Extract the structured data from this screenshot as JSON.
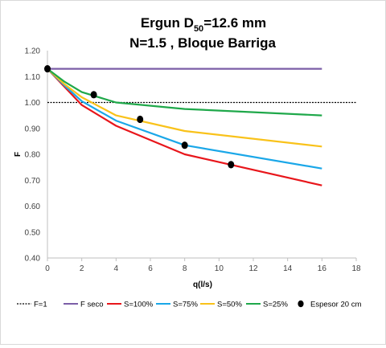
{
  "chart_data": {
    "type": "line",
    "title_main": "Ergun D",
    "title_sub": "50",
    "title_tail": "=12.6 mm",
    "title_line2": "N=1.5 , Bloque Barriga",
    "xlabel": "q(l/s)",
    "ylabel": "F",
    "xlim": [
      0,
      18
    ],
    "ylim": [
      0.4,
      1.2
    ],
    "x_ticks": [
      "0",
      "2",
      "4",
      "6",
      "8",
      "10",
      "12",
      "14",
      "16",
      "18"
    ],
    "y_ticks": [
      "0.40",
      "0.50",
      "0.60",
      "0.70",
      "0.80",
      "0.90",
      "1.00",
      "1.10",
      "1.20"
    ],
    "grid": false,
    "legend_position": "bottom",
    "series": [
      {
        "name": "F=1",
        "color": "#000000",
        "style": "dotted",
        "x": [
          0,
          18
        ],
        "y": [
          1.0,
          1.0
        ]
      },
      {
        "name": "F seco",
        "color": "#7b5ea7",
        "style": "solid",
        "x": [
          0,
          16
        ],
        "y": [
          1.13,
          1.13
        ]
      },
      {
        "name": "S=100%",
        "color": "#e8161b",
        "style": "solid",
        "x": [
          0,
          1,
          2,
          4,
          8,
          16
        ],
        "y": [
          1.13,
          1.06,
          0.99,
          0.91,
          0.8,
          0.68
        ]
      },
      {
        "name": "S=75%",
        "color": "#1aa7e8",
        "style": "solid",
        "x": [
          0,
          1,
          2,
          4,
          8,
          16
        ],
        "y": [
          1.13,
          1.065,
          1.005,
          0.93,
          0.835,
          0.745
        ]
      },
      {
        "name": "S=50%",
        "color": "#f9c21a",
        "style": "solid",
        "x": [
          0,
          1,
          2,
          4,
          8,
          16
        ],
        "y": [
          1.13,
          1.07,
          1.02,
          0.95,
          0.89,
          0.83
        ]
      },
      {
        "name": "S=25%",
        "color": "#1fa84a",
        "style": "solid",
        "x": [
          0,
          1,
          2,
          4,
          8,
          16
        ],
        "y": [
          1.13,
          1.08,
          1.04,
          1.0,
          0.975,
          0.95
        ]
      }
    ],
    "markers": {
      "name": "Espesor 20 cm",
      "color": "#000000",
      "x": [
        0,
        2.7,
        5.4,
        8.0,
        10.7
      ],
      "y": [
        1.13,
        1.03,
        0.935,
        0.835,
        0.76
      ]
    }
  }
}
